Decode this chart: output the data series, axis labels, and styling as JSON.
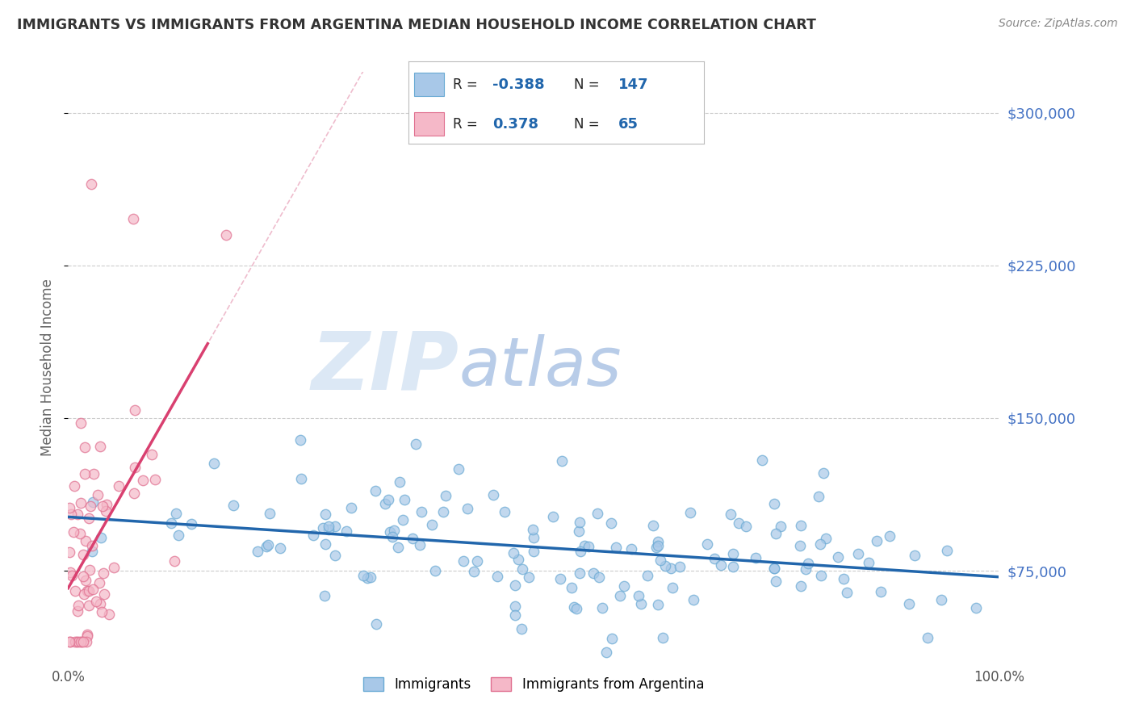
{
  "title": "IMMIGRANTS VS IMMIGRANTS FROM ARGENTINA MEDIAN HOUSEHOLD INCOME CORRELATION CHART",
  "source_text": "Source: ZipAtlas.com",
  "ylabel": "Median Household Income",
  "xlim": [
    0.0,
    100.0
  ],
  "ylim": [
    30000,
    320000
  ],
  "yticks": [
    75000,
    150000,
    225000,
    300000
  ],
  "ytick_labels": [
    "$75,000",
    "$150,000",
    "$225,000",
    "$300,000"
  ],
  "blue_color": "#a8c8e8",
  "blue_edge_color": "#6aaad4",
  "blue_line_color": "#2166ac",
  "pink_color": "#f5b8c8",
  "pink_edge_color": "#e07090",
  "pink_line_color": "#d94070",
  "pink_dash_color": "#e8a0b8",
  "R_blue": -0.388,
  "N_blue": 147,
  "R_pink": 0.378,
  "N_pink": 65,
  "watermark_zip": "ZIP",
  "watermark_atlas": "atlas",
  "watermark_color_zip": "#dce8f5",
  "watermark_color_atlas": "#b8cce8",
  "background_color": "#ffffff",
  "grid_color": "#cccccc",
  "title_color": "#333333",
  "tick_label_color_right": "#4472c4",
  "legend_border_color": "#aaaaaa",
  "seed_blue": 42,
  "seed_pink": 7
}
